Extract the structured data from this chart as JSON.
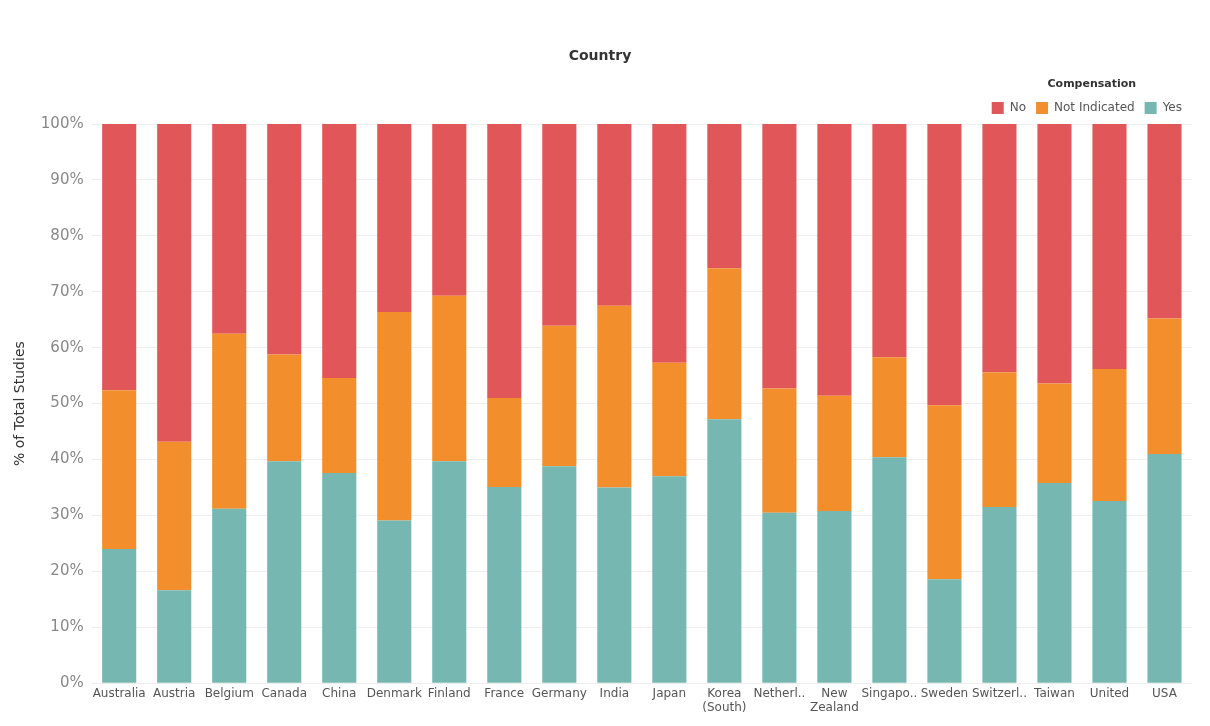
{
  "chart_data": {
    "type": "bar",
    "xlabel": "Country",
    "ylabel": "% of Total Studies",
    "legend_title": "Compensation",
    "stacked": true,
    "legend": "top right",
    "grid": "y",
    "categories": [
      "Australia",
      "Austria",
      "Belgium",
      "Canada",
      "China",
      "Denmark",
      "Finland",
      "France",
      "Germany",
      "India",
      "Japan",
      "Korea (South)",
      "Netherl..",
      "New Zealand",
      "Singapo..",
      "Sweden",
      "Switzerl..",
      "Taiwan",
      "United",
      "USA"
    ],
    "ylim": [
      0,
      100
    ],
    "yticks": [
      {
        "value": 0,
        "label": "0%"
      },
      {
        "value": 10,
        "label": "10%"
      },
      {
        "value": 20,
        "label": "20%"
      },
      {
        "value": 30,
        "label": "30%"
      },
      {
        "value": 40,
        "label": "40%"
      },
      {
        "value": 50,
        "label": "50%"
      },
      {
        "value": 60,
        "label": "60%"
      },
      {
        "value": 70,
        "label": "70%"
      },
      {
        "value": 80,
        "label": "80%"
      },
      {
        "value": 90,
        "label": "90%"
      },
      {
        "value": 100,
        "label": "100%"
      }
    ],
    "series": [
      {
        "name": "Yes",
        "color": "#76b7b2",
        "values": [
          24,
          16.6,
          31.2,
          39.7,
          37.6,
          29.1,
          39.7,
          35.1,
          38.8,
          35,
          37,
          47.2,
          30.5,
          30.8,
          40.4,
          18.6,
          31.5,
          35.8,
          32.6,
          41
        ]
      },
      {
        "name": "Not Indicated",
        "color": "#f28e2b",
        "values": [
          28.4,
          26.6,
          31.3,
          19.1,
          17,
          37.3,
          29.6,
          15.9,
          25.1,
          32.5,
          20.3,
          27,
          22.2,
          20.6,
          17.9,
          31.1,
          24.1,
          17.8,
          23.6,
          24.2
        ]
      },
      {
        "name": "No",
        "color": "#e15759",
        "values": [
          47.6,
          56.8,
          37.5,
          41.2,
          45.4,
          33.6,
          30.7,
          49,
          36.1,
          32.5,
          42.7,
          25.8,
          47.3,
          48.6,
          41.7,
          50.3,
          44.4,
          46.4,
          43.8,
          34.8
        ]
      }
    ]
  }
}
